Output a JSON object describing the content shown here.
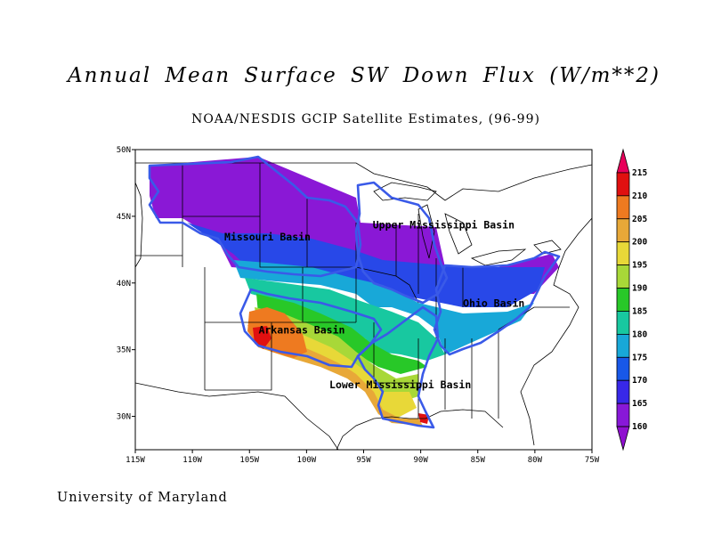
{
  "title": "Annual Mean Surface SW Down Flux (W/m**2)",
  "subtitle": "NOAA/NESDIS GCIP Satellite Estimates, (96-99)",
  "credit": "University of Maryland",
  "map": {
    "lon_range": [
      -115,
      -75
    ],
    "lat_range": [
      27.5,
      50
    ],
    "lon_ticks": [
      "115W",
      "110W",
      "105W",
      "100W",
      "95W",
      "90W",
      "85W",
      "80W",
      "75W"
    ],
    "lat_ticks": [
      "50N",
      "45N",
      "40N",
      "35N",
      "30N"
    ],
    "basin_outline_color": "#3a5ae8",
    "basins": [
      {
        "name": "Upper Mississippi Basin",
        "lon": -94.2,
        "lat": 44.1
      },
      {
        "name": "Missouri Basin",
        "lon": -107.2,
        "lat": 43.2
      },
      {
        "name": "Ohio Basin",
        "lon": -86.3,
        "lat": 38.2
      },
      {
        "name": "Arkansas Basin",
        "lon": -104.2,
        "lat": 36.2
      },
      {
        "name": "Lower Mississippi Basin",
        "lon": -98.0,
        "lat": 32.1
      }
    ]
  },
  "colorbar": {
    "unit": "W/m**2",
    "levels": [
      "215",
      "210",
      "205",
      "200",
      "195",
      "190",
      "185",
      "180",
      "175",
      "170",
      "165",
      "160"
    ],
    "colors": [
      "#e8005a",
      "#e01010",
      "#ee7a20",
      "#e8a838",
      "#e8d838",
      "#a8d838",
      "#28c828",
      "#18c8a0",
      "#18a8d8",
      "#1858e8",
      "#3828e8",
      "#8818d8",
      "#9010d0"
    ]
  }
}
